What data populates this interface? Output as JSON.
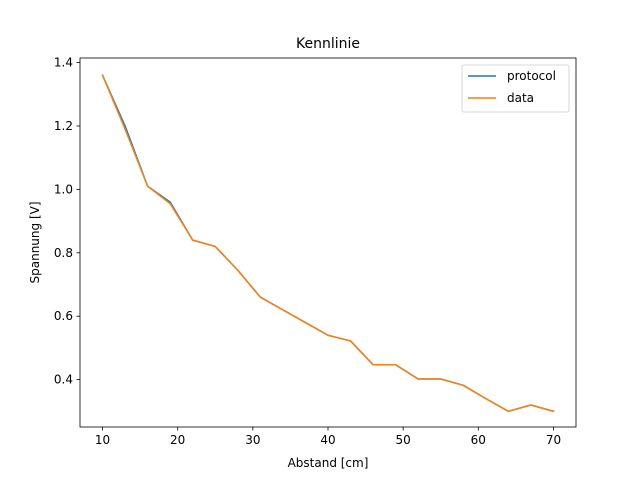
{
  "chart_data": {
    "type": "line",
    "title": "Kennlinie",
    "xlabel": "Abstand [cm]",
    "ylabel": "Spannung [V]",
    "xlim": [
      7.0,
      73.0
    ],
    "ylim": [
      0.2505,
      1.4145
    ],
    "xticks": [
      10,
      20,
      30,
      40,
      50,
      60,
      70
    ],
    "yticks": [
      0.4,
      0.6,
      0.8,
      1.0,
      1.2,
      1.4
    ],
    "ytick_labels": [
      "0.4",
      "0.6",
      "0.8",
      "1.0",
      "1.2",
      "1.4"
    ],
    "grid": false,
    "legend_position": "top-right",
    "x": [
      10,
      13,
      16,
      19,
      22,
      25,
      28,
      31,
      34,
      37,
      40,
      43,
      46,
      49,
      52,
      55,
      58,
      61,
      64,
      67,
      70
    ],
    "series": [
      {
        "name": "protocol",
        "color": "#1f77b4",
        "values": [
          1.36,
          1.2,
          1.01,
          0.96,
          0.84,
          0.82,
          0.745,
          0.66,
          0.62,
          0.58,
          0.54,
          0.522,
          0.447,
          0.447,
          0.402,
          0.402,
          0.382,
          0.34,
          0.3,
          0.32,
          0.3
        ]
      },
      {
        "name": "data",
        "color": "#ff7f0e",
        "values": [
          1.36,
          1.19,
          1.01,
          0.955,
          0.84,
          0.82,
          0.745,
          0.66,
          0.62,
          0.58,
          0.54,
          0.522,
          0.447,
          0.447,
          0.402,
          0.402,
          0.382,
          0.34,
          0.3,
          0.32,
          0.3
        ]
      }
    ]
  }
}
